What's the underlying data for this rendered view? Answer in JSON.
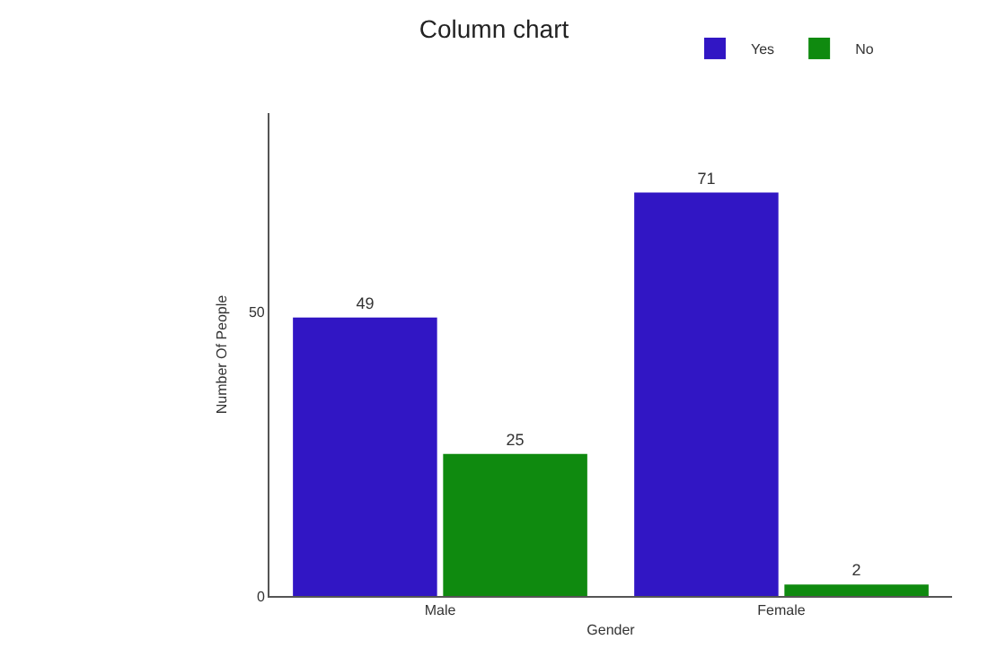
{
  "chart_data": {
    "type": "bar",
    "title": "Column chart",
    "xlabel": "Gender",
    "ylabel": "Number Of People",
    "categories": [
      "Male",
      "Female"
    ],
    "series": [
      {
        "name": "Yes",
        "color": "#3116c4",
        "values": [
          49,
          71
        ]
      },
      {
        "name": "No",
        "color": "#0f8a0f",
        "values": [
          25,
          2
        ]
      }
    ],
    "ylim": [
      0,
      85
    ],
    "yticks": [
      0,
      50
    ],
    "data_labels": true,
    "legend": "top right"
  }
}
